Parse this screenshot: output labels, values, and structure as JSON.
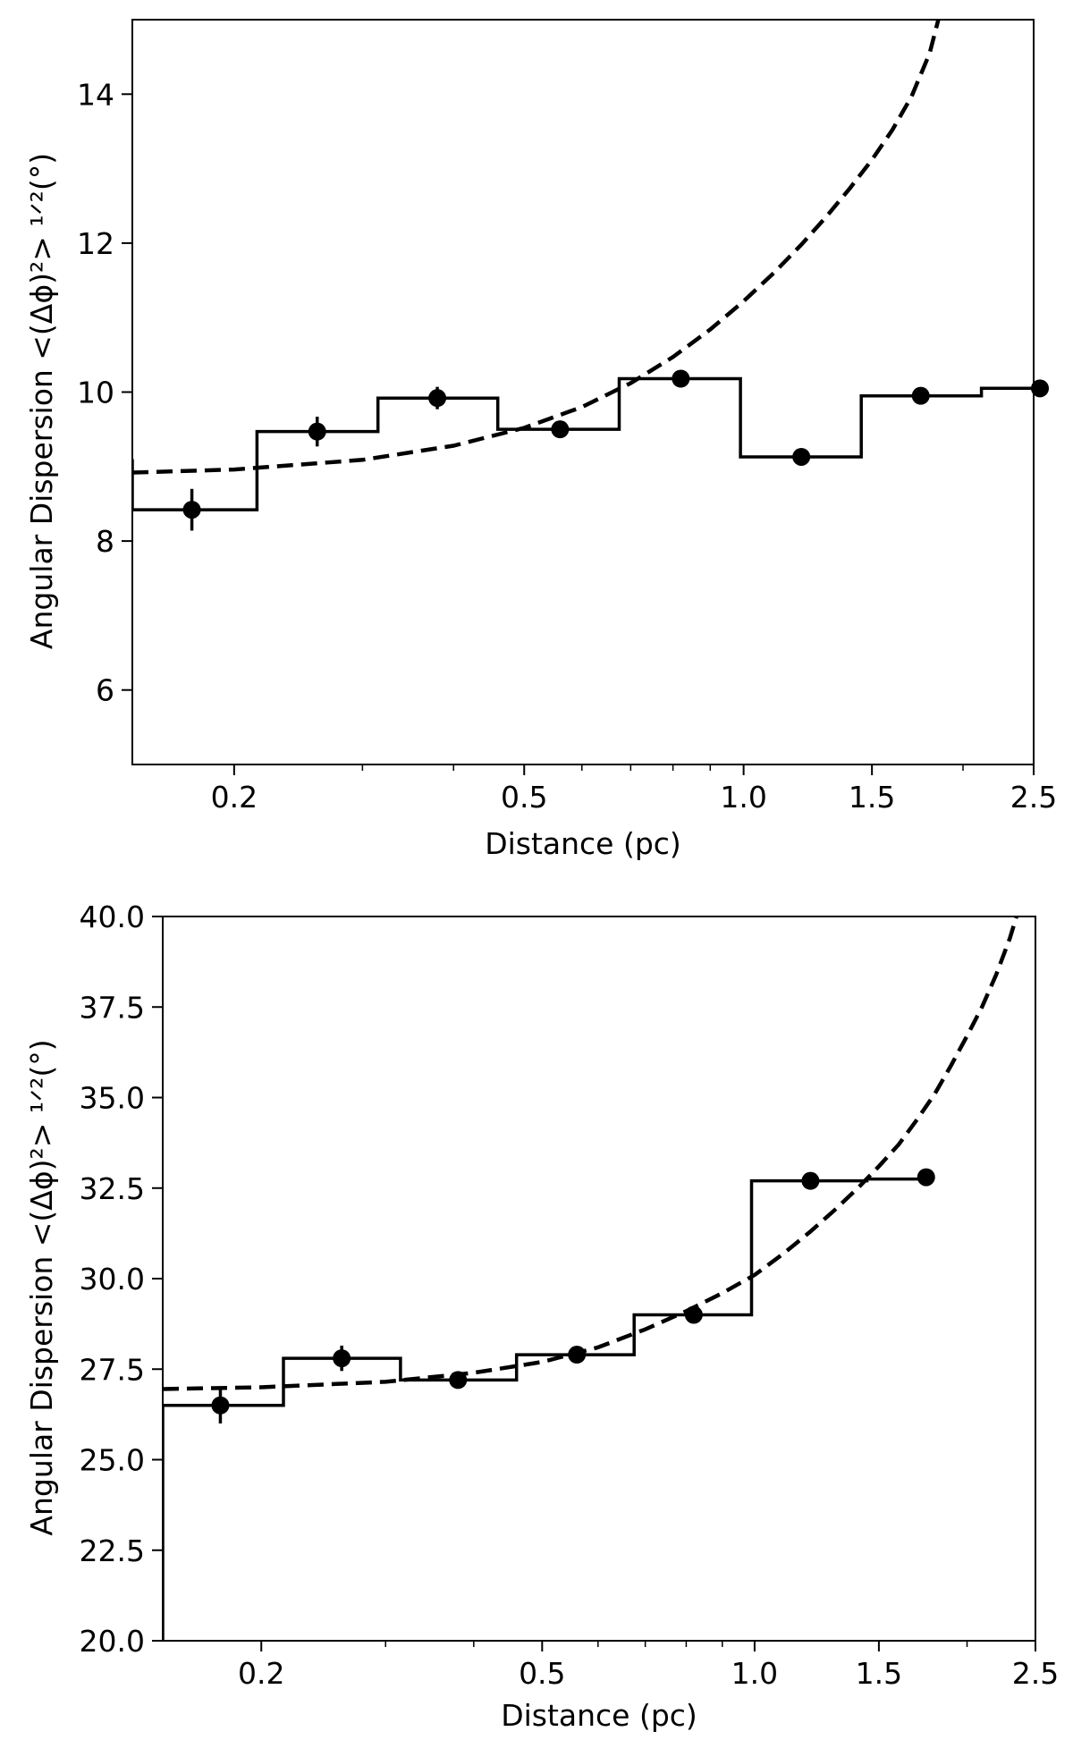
{
  "chart_data": [
    {
      "type": "scatter",
      "title": "",
      "xlabel": "Distance (pc)",
      "ylabel": "Angular Dispersion <(Δϕ)²> ¹ᐟ²(°)",
      "xscale": "log",
      "xlim": [
        0.145,
        2.5
      ],
      "ylim": [
        5,
        15
      ],
      "xticks": [
        0.2,
        0.5,
        1.0,
        1.5,
        2.5
      ],
      "xtick_labels": [
        "0.2",
        "0.5",
        "1.0",
        "1.5",
        "2.5"
      ],
      "yticks": [
        6,
        8,
        10,
        12,
        14
      ],
      "ytick_labels": [
        "6",
        "8",
        "10",
        "12",
        "14"
      ],
      "grid": false,
      "points": {
        "x": [
          0.175,
          0.26,
          0.38,
          0.56,
          0.82,
          1.2,
          1.75,
          2.55
        ],
        "y": [
          8.42,
          9.47,
          9.92,
          9.5,
          10.18,
          9.13,
          9.95,
          10.05
        ],
        "yerr": [
          0.28,
          0.2,
          0.15,
          0.08,
          0.06,
          0.05,
          0.07,
          0.07
        ]
      },
      "histogram": {
        "edges": [
          0.145,
          0.215,
          0.315,
          0.46,
          0.675,
          0.99,
          1.45,
          2.12,
          2.6
        ],
        "values": [
          8.42,
          9.47,
          9.92,
          9.5,
          10.18,
          9.13,
          9.95,
          10.05
        ],
        "left_start": 9.1
      },
      "fit_curve": {
        "style": "dashed",
        "x": [
          0.145,
          0.2,
          0.3,
          0.4,
          0.5,
          0.6,
          0.7,
          0.8,
          0.9,
          1.0,
          1.1,
          1.2,
          1.3,
          1.4,
          1.5,
          1.6,
          1.7,
          1.8,
          1.85
        ],
        "y": [
          8.92,
          8.96,
          9.09,
          9.28,
          9.52,
          9.8,
          10.12,
          10.47,
          10.84,
          11.22,
          11.6,
          11.98,
          12.36,
          12.74,
          13.12,
          13.52,
          13.97,
          14.55,
          15.0
        ]
      }
    },
    {
      "type": "scatter",
      "title": "",
      "xlabel": "Distance (pc)",
      "ylabel": "Angular Dispersion <(Δϕ)²> ¹ᐟ²(°)",
      "xscale": "log",
      "xlim": [
        0.145,
        2.5
      ],
      "ylim": [
        20,
        40
      ],
      "xticks": [
        0.2,
        0.5,
        1.0,
        1.5,
        2.5
      ],
      "xtick_labels": [
        "0.2",
        "0.5",
        "1.0",
        "1.5",
        "2.5"
      ],
      "yticks": [
        20,
        22.5,
        25,
        27.5,
        30,
        32.5,
        35,
        37.5,
        40
      ],
      "ytick_labels": [
        "20.0",
        "22.5",
        "25.0",
        "27.5",
        "30.0",
        "32.5",
        "35.0",
        "37.5",
        "40.0"
      ],
      "grid": false,
      "points": {
        "x": [
          0.175,
          0.26,
          0.38,
          0.56,
          0.82,
          1.2,
          1.75
        ],
        "y": [
          26.5,
          27.8,
          27.2,
          27.9,
          29.0,
          32.7,
          32.8
        ],
        "yerr": [
          0.5,
          0.35,
          0.2,
          0.1,
          0.15,
          0.1,
          0.1
        ]
      },
      "histogram": {
        "edges": [
          0.145,
          0.215,
          0.315,
          0.46,
          0.675,
          0.99,
          1.45
        ],
        "values": [
          26.5,
          27.8,
          27.2,
          27.9,
          29.0,
          32.7
        ],
        "left_start": 20.0,
        "tail": {
          "from": 1.45,
          "to": 1.75,
          "value": 32.75
        }
      },
      "fit_curve": {
        "style": "dashed",
        "x": [
          0.145,
          0.2,
          0.3,
          0.4,
          0.5,
          0.6,
          0.7,
          0.8,
          0.9,
          1.0,
          1.1,
          1.2,
          1.3,
          1.4,
          1.5,
          1.6,
          1.7,
          1.8,
          1.9,
          2.0,
          2.1,
          2.2,
          2.3,
          2.35
        ],
        "y": [
          26.95,
          27.0,
          27.15,
          27.4,
          27.7,
          28.1,
          28.6,
          29.1,
          29.6,
          30.1,
          30.7,
          31.3,
          31.9,
          32.5,
          33.1,
          33.7,
          34.4,
          35.1,
          35.9,
          36.7,
          37.5,
          38.4,
          39.4,
          40.0
        ]
      }
    }
  ]
}
